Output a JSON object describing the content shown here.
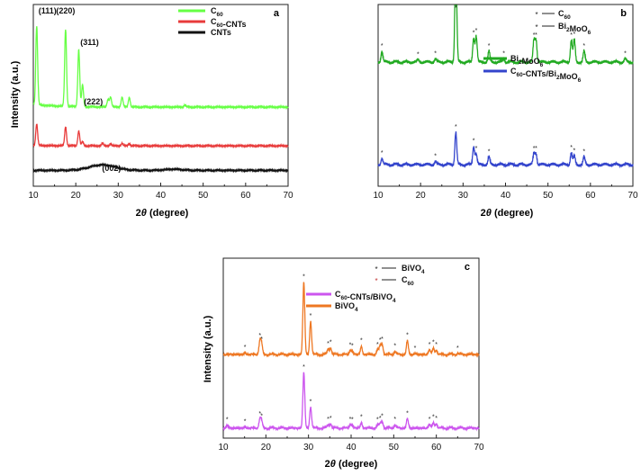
{
  "chart_data": [
    {
      "type": "line",
      "panel_label": "a",
      "xlabel": "2θ (degree)",
      "ylabel": "Intensity (a.u.)",
      "xlim": [
        10,
        70
      ],
      "xticks": [
        10,
        20,
        30,
        40,
        50,
        60,
        70
      ],
      "yticks": "unlabeled",
      "grid": false,
      "legend_position": "top-right",
      "series": [
        {
          "name": "C60",
          "name_sub": "60",
          "name_suffix": "",
          "color": "#66ff44",
          "offset": 2.0,
          "baseline": 0.45,
          "peaks": [
            [
              10.8,
              2.0
            ],
            [
              17.6,
              1.95
            ],
            [
              20.7,
              1.45
            ],
            [
              21.6,
              0.55
            ],
            [
              27.6,
              0.2
            ],
            [
              28.2,
              0.25
            ],
            [
              30.9,
              0.25
            ],
            [
              32.6,
              0.25
            ],
            [
              45.7,
              0.05
            ]
          ]
        },
        {
          "name": "C60-CNTs",
          "name_sub": "60",
          "name_suffix": "-CNTs",
          "color": "#e83a3a",
          "offset": 1.02,
          "baseline": 0.07,
          "peaks": [
            [
              10.8,
              0.55
            ],
            [
              17.6,
              0.48
            ],
            [
              20.7,
              0.38
            ],
            [
              21.6,
              0.1
            ],
            [
              26.3,
              0.06
            ],
            [
              28.2,
              0.05
            ],
            [
              30.9,
              0.06
            ],
            [
              32.6,
              0.06
            ]
          ]
        },
        {
          "name": "CNTs",
          "name_sub": "",
          "name_suffix": "",
          "color": "#111111",
          "offset": 0.4,
          "baseline": 0.0,
          "broad_peaks": [
            [
              26.3,
              0.14,
              3.0
            ],
            [
              43.0,
              0.03,
              2.0
            ]
          ]
        }
      ],
      "annotations": [
        {
          "text": "(111)",
          "x": 10.8
        },
        {
          "text": "(220)",
          "x": 17.6
        },
        {
          "text": "(311)",
          "x": 20.7
        },
        {
          "text": "(222)",
          "x": 21.6
        },
        {
          "text": "(002)",
          "x": 26.3
        }
      ]
    },
    {
      "type": "line",
      "panel_label": "b",
      "xlabel": "2θ (degree)",
      "ylabel": "",
      "xlim": [
        10,
        70
      ],
      "xticks": [
        10,
        20,
        30,
        40,
        50,
        60,
        70
      ],
      "grid": false,
      "legend_position": "top-right",
      "marker_legend": [
        {
          "marker": "diamond",
          "name": "C60",
          "name_sub": "60",
          "prefix": "C",
          "suffix": ""
        },
        {
          "marker": "asterisk",
          "name": "Bi2MoO6",
          "parts": [
            [
              "Bi",
              ""
            ],
            [
              "2",
              "sub"
            ],
            [
              "MoO",
              ""
            ],
            [
              "6",
              "sub"
            ]
          ]
        }
      ],
      "series": [
        {
          "name": "Bi2MoO6",
          "parts": [
            [
              "Bi",
              ""
            ],
            [
              "2",
              "sub"
            ],
            [
              "MoO",
              ""
            ],
            [
              "6",
              "sub"
            ]
          ],
          "color": "#22aa22",
          "offset": 1.15,
          "peaks": [
            [
              10.9,
              0.1
            ],
            [
              19.4,
              0.02
            ],
            [
              23.5,
              0.03
            ],
            [
              28.3,
              1.0
            ],
            [
              32.5,
              0.22
            ],
            [
              33.1,
              0.24
            ],
            [
              36.1,
              0.1
            ],
            [
              39.6,
              0.03
            ],
            [
              46.7,
              0.2
            ],
            [
              47.2,
              0.2
            ],
            [
              55.5,
              0.2
            ],
            [
              56.2,
              0.21
            ],
            [
              58.5,
              0.1
            ],
            [
              68.2,
              0.03
            ]
          ]
        },
        {
          "name": "C60-CNTs/Bi2MoO6",
          "parts": [
            [
              "C",
              ""
            ],
            [
              "60",
              "sub"
            ],
            [
              "-CNTs/Bi",
              ""
            ],
            [
              "2",
              "sub"
            ],
            [
              "MoO",
              ""
            ],
            [
              "6",
              "sub"
            ]
          ],
          "color": "#3344cc",
          "offset": 0.2,
          "peaks": [
            [
              10.9,
              0.06
            ],
            [
              23.5,
              0.03
            ],
            [
              28.3,
              0.3
            ],
            [
              32.5,
              0.17
            ],
            [
              33.1,
              0.1
            ],
            [
              36.1,
              0.07
            ],
            [
              46.7,
              0.1
            ],
            [
              47.2,
              0.1
            ],
            [
              55.5,
              0.11
            ],
            [
              56.2,
              0.08
            ],
            [
              58.5,
              0.07
            ]
          ]
        }
      ]
    },
    {
      "type": "line",
      "panel_label": "c",
      "xlabel": "2θ (degree)",
      "ylabel": "Intensity (a.u.)",
      "xlim": [
        10,
        70
      ],
      "xticks": [
        10,
        20,
        30,
        40,
        50,
        60,
        70
      ],
      "grid": false,
      "legend_position": "top-center",
      "marker_legend": [
        {
          "marker": "asterisk",
          "name": "BiVO4",
          "parts": [
            [
              "BiVO",
              ""
            ],
            [
              "4",
              "sub"
            ]
          ]
        },
        {
          "marker": "diamond",
          "name": "C60",
          "parts": [
            [
              "C",
              ""
            ],
            [
              "60",
              "sub"
            ]
          ]
        }
      ],
      "series": [
        {
          "name": "C60-CNTs/BiVO4",
          "parts": [
            [
              "C",
              ""
            ],
            [
              "60",
              "sub"
            ],
            [
              "-CNTs/BiVO",
              ""
            ],
            [
              "4",
              "sub"
            ]
          ],
          "color": "#cc55ee",
          "offset": 0.18,
          "peaks": [
            [
              10.9,
              0.05
            ],
            [
              15.1,
              0.02
            ],
            [
              18.6,
              0.16
            ],
            [
              19.0,
              0.12
            ],
            [
              28.9,
              1.0
            ],
            [
              30.5,
              0.38
            ],
            [
              34.6,
              0.06
            ],
            [
              35.2,
              0.08
            ],
            [
              39.8,
              0.06
            ],
            [
              40.3,
              0.05
            ],
            [
              42.4,
              0.1
            ],
            [
              46.2,
              0.05
            ],
            [
              46.8,
              0.08
            ],
            [
              47.3,
              0.12
            ],
            [
              50.3,
              0.06
            ],
            [
              53.2,
              0.17
            ],
            [
              58.4,
              0.06
            ],
            [
              59.3,
              0.1
            ],
            [
              60.0,
              0.08
            ]
          ]
        },
        {
          "name": "BiVO4",
          "parts": [
            [
              "BiVO",
              ""
            ],
            [
              "4",
              "sub"
            ]
          ],
          "color": "#ee7722",
          "offset": 1.5,
          "peaks": [
            [
              15.1,
              0.03
            ],
            [
              18.6,
              0.24
            ],
            [
              19.0,
              0.18
            ],
            [
              28.9,
              1.3
            ],
            [
              30.5,
              0.6
            ],
            [
              34.6,
              0.1
            ],
            [
              35.2,
              0.12
            ],
            [
              39.8,
              0.07
            ],
            [
              40.3,
              0.06
            ],
            [
              42.4,
              0.15
            ],
            [
              46.2,
              0.08
            ],
            [
              46.8,
              0.16
            ],
            [
              47.3,
              0.18
            ],
            [
              50.3,
              0.06
            ],
            [
              53.2,
              0.25
            ],
            [
              55.0,
              0.02
            ],
            [
              58.4,
              0.08
            ],
            [
              59.3,
              0.12
            ],
            [
              60.0,
              0.08
            ],
            [
              65.0,
              0.02
            ]
          ]
        }
      ]
    }
  ],
  "axis_labels": {
    "x_prefix": "2",
    "x_theta": "θ",
    "x_suffix": " (degree)",
    "y_text": "Intensity (a.u.)"
  }
}
